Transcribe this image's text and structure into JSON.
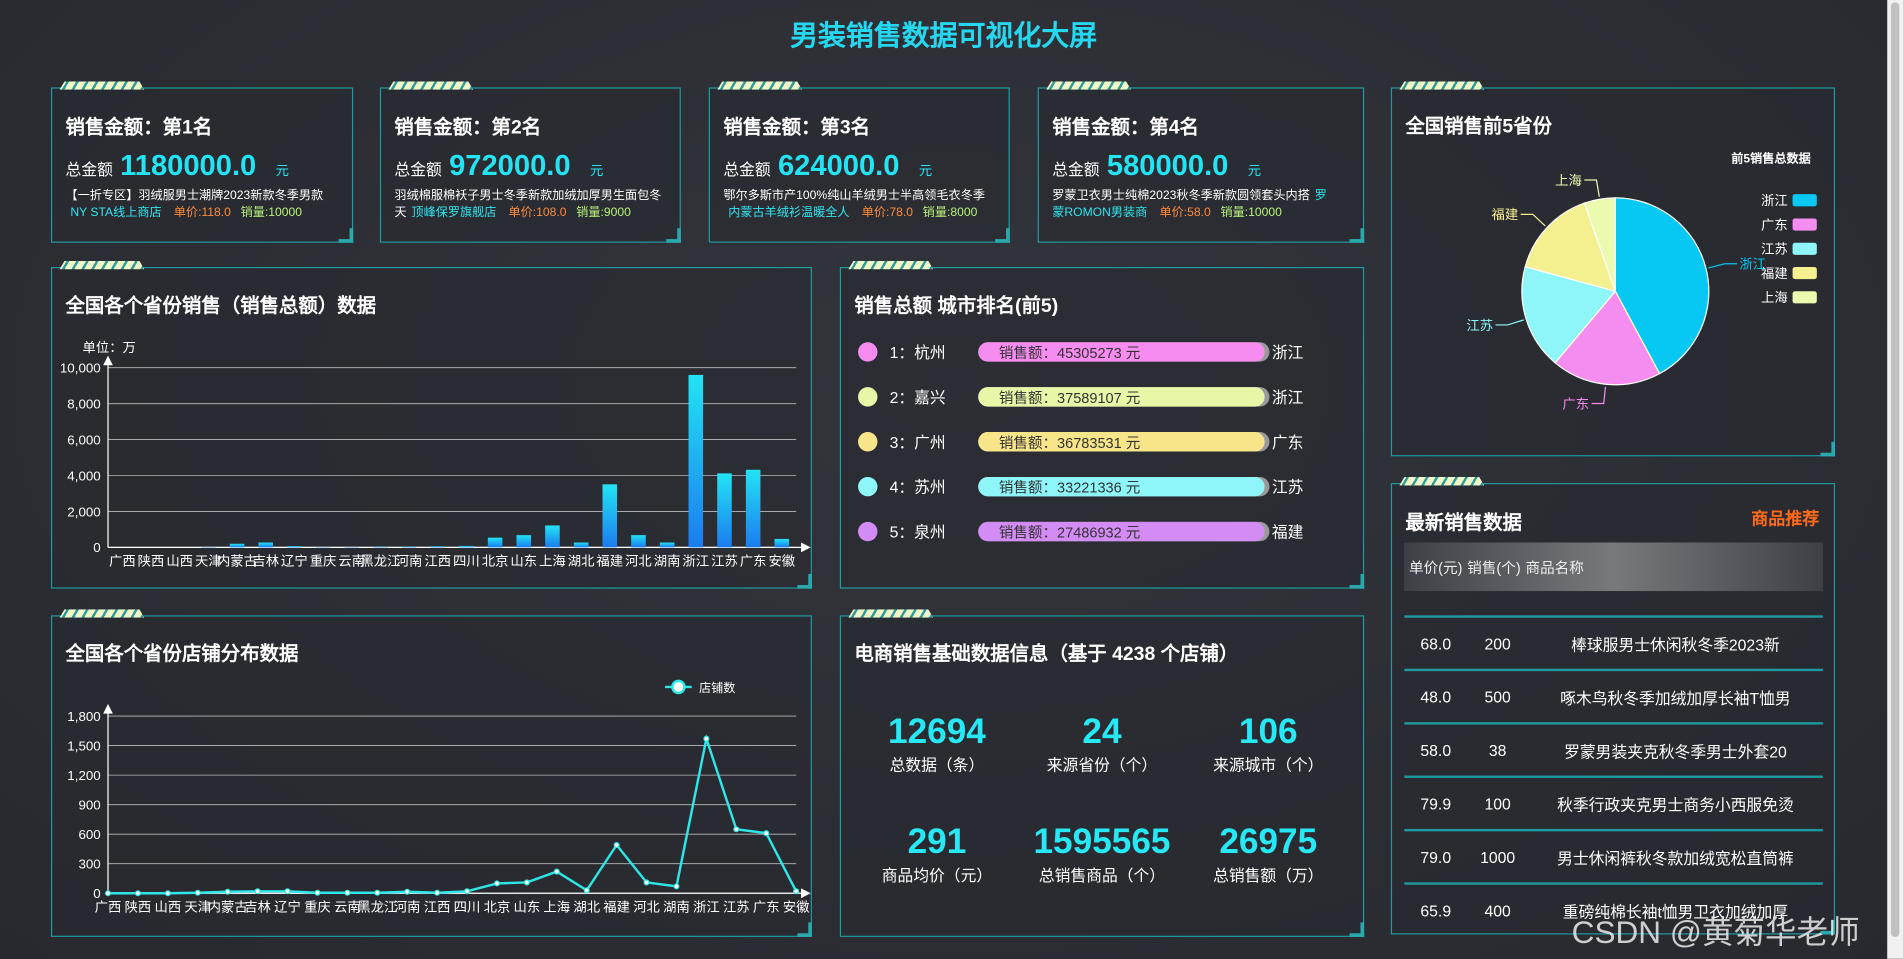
{
  "title": "男装销售数据可视化大屏",
  "cards": [
    {
      "heading": "销售金额：第1名",
      "total_label": "总金额",
      "amount": "1180000.0",
      "unit": "元",
      "desc": "【一折专区】羽绒服男士潮牌2023新款冬季男款",
      "shop": "NY STA线上商店",
      "price": "单价:118.0",
      "sales": "销量:10000"
    },
    {
      "heading": "销售金额：第2名",
      "total_label": "总金额",
      "amount": "972000.0",
      "unit": "元",
      "desc": "羽绒棉服棉袄子男士冬季新款加绒加厚男生面包冬天",
      "shop": "顶峰保罗旗舰店",
      "price": "单价:108.0",
      "sales": "销量:9000"
    },
    {
      "heading": "销售金额：第3名",
      "total_label": "总金额",
      "amount": "624000.0",
      "unit": "元",
      "desc": "鄂尔多斯市产100%纯山羊绒男士半高领毛衣冬季",
      "shop": "内蒙古羊绒衫温暖全人",
      "price": "单价:78.0",
      "sales": "销量:8000"
    },
    {
      "heading": "销售金额：第4名",
      "total_label": "总金额",
      "amount": "580000.0",
      "unit": "元",
      "desc": "罗蒙卫衣男士纯棉2023秋冬季新款圆领套头内搭",
      "shop": "罗蒙ROMON男装商",
      "price": "单价:58.0",
      "sales": "销量:10000"
    }
  ],
  "chart_data": [
    {
      "type": "bar",
      "title": "全国各个省份销售（销售总额）数据",
      "y_unit": "单位：万",
      "color_top": "#22e4f4",
      "color_bottom": "#1b7cf0",
      "categories": [
        "广西",
        "陕西",
        "山西",
        "天津",
        "内蒙古",
        "吉林",
        "辽宁",
        "重庆",
        "云南",
        "黑龙江",
        "河南",
        "江西",
        "四川",
        "北京",
        "山东",
        "上海",
        "湖北",
        "福建",
        "河北",
        "湖南",
        "浙江",
        "江苏",
        "广东",
        "安徽"
      ],
      "values": [
        0,
        0,
        0,
        20,
        200,
        270,
        70,
        20,
        20,
        30,
        40,
        60,
        80,
        540,
        680,
        1220,
        270,
        3510,
        680,
        270,
        9600,
        4120,
        4320,
        470
      ],
      "ylim": [
        0,
        10000
      ],
      "yticks": [
        0,
        {
          "value": 2000,
          "label": "2,000"
        },
        {
          "value": 4000,
          "label": "4,000"
        },
        {
          "value": 6000,
          "label": "6,000"
        },
        {
          "value": 8000,
          "label": "8,000"
        },
        {
          "value": 10000,
          "label": "10,000"
        }
      ],
      "grid": true
    },
    {
      "type": "pie",
      "title": "全国销售前5省份",
      "subtitle": "前5销售总数据",
      "categories": [
        "浙江",
        "广东",
        "江苏",
        "福建",
        "上海"
      ],
      "values": [
        9600,
        4320,
        4120,
        3510,
        1220
      ],
      "colors": [
        "#06c8f2",
        "#f58cf0",
        "#8ef5f8",
        "#f5f08f",
        "#eafaaf"
      ],
      "legend": "right"
    },
    {
      "type": "line",
      "title": "全国各个省份店铺分布数据",
      "categories": [
        "广西",
        "陕西",
        "山西",
        "天津",
        "内蒙古",
        "吉林",
        "辽宁",
        "重庆",
        "云南",
        "黑龙江",
        "河南",
        "江西",
        "四川",
        "北京",
        "山东",
        "上海",
        "湖北",
        "福建",
        "河北",
        "湖南",
        "浙江",
        "江苏",
        "广东",
        "安徽"
      ],
      "series": [
        {
          "name": "店铺数",
          "color": "#2ee6e6",
          "values": [
            0,
            0,
            0,
            5,
            15,
            20,
            20,
            5,
            5,
            5,
            15,
            5,
            20,
            100,
            110,
            220,
            30,
            490,
            110,
            70,
            1570,
            650,
            610,
            20
          ]
        }
      ],
      "ylim": [
        0,
        1800
      ],
      "yticks": [
        0,
        300,
        600,
        900,
        {
          "value": 1200,
          "label": "1,200"
        },
        {
          "value": 1500,
          "label": "1,500"
        },
        {
          "value": 1800,
          "label": "1,800"
        }
      ],
      "grid": true,
      "legend": "top-right"
    }
  ],
  "ranking": {
    "title": "销售总额 城市排名(前5)",
    "items": [
      {
        "label": "1：杭州",
        "sales": "销售额：45305273 元",
        "province": "浙江",
        "color": "#f78cf0"
      },
      {
        "label": "2：嘉兴",
        "sales": "销售额：37589107 元",
        "province": "浙江",
        "color": "#e6f8a8"
      },
      {
        "label": "3：广州",
        "sales": "销售额：36783531 元",
        "province": "广东",
        "color": "#f8e58a"
      },
      {
        "label": "4：苏州",
        "sales": "销售额：33221336 元",
        "province": "江苏",
        "color": "#8ef6f9"
      },
      {
        "label": "5：泉州",
        "sales": "销售额：27486932 元",
        "province": "福建",
        "color": "#d48cf5"
      }
    ]
  },
  "stats": {
    "title": "电商销售基础数据信息（基于 4238 个店铺）",
    "items": [
      {
        "value": 12694,
        "label": "总数据（条）"
      },
      {
        "value": 24,
        "label": "来源省份（个）"
      },
      {
        "value": 106,
        "label": "来源城市（个）"
      },
      {
        "value": 291,
        "label": "商品均价（元）"
      },
      {
        "value": 1595565,
        "label": "总销售商品（个）"
      },
      {
        "value": 26975,
        "label": "总销售额（万）"
      }
    ]
  },
  "table": {
    "title": "最新销售数据",
    "link": "商品推荐",
    "columns": [
      "单价(元)",
      "销售(个)",
      "商品名称"
    ],
    "rows": [
      [
        "68.0",
        "200",
        "棒球服男士休闲秋冬季2023新"
      ],
      [
        "48.0",
        "500",
        "啄木鸟秋冬季加绒加厚长袖T恤男"
      ],
      [
        "58.0",
        "38",
        "罗蒙男装夹克秋冬季男士外套20"
      ],
      [
        "79.9",
        "100",
        "秋季行政夹克男士商务小西服免烫"
      ],
      [
        "79.0",
        "1000",
        "男士休闲裤秋冬款加绒宽松直筒裤"
      ],
      [
        "65.9",
        "400",
        "重磅纯棉长袖t恤男卫衣加绒加厚"
      ]
    ]
  },
  "watermark": "CSDN @黄菊华老师"
}
